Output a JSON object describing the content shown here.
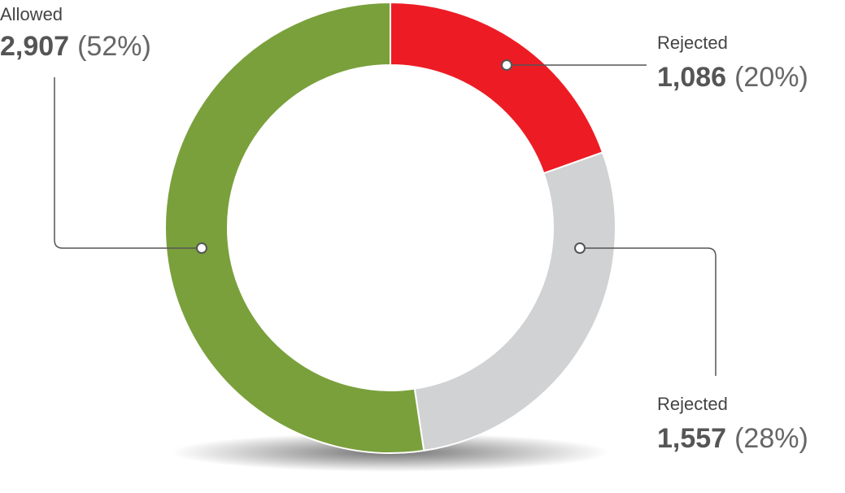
{
  "chart_data": {
    "type": "donut",
    "categories": [
      "Rejected",
      "Rejected",
      "Allowed"
    ],
    "values": [
      1086,
      1557,
      2907
    ],
    "value_labels": [
      "1,086",
      "1,557",
      "2,907"
    ],
    "percents": [
      20,
      28,
      52
    ],
    "percent_labels": [
      "(20%)",
      "(28%)",
      "(52%)"
    ],
    "colors": [
      "#ed1c24",
      "#d1d2d4",
      "#7aa03c"
    ]
  }
}
